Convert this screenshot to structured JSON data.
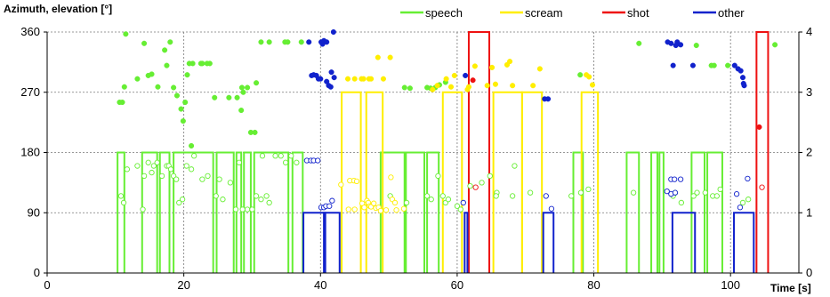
{
  "chart_data": {
    "type": "scatter",
    "ylabel": "Azimuth, elevation [°]",
    "xlabel": "Time [s]",
    "xlim": [
      0,
      110
    ],
    "ylim": [
      0,
      360
    ],
    "y2lim": [
      0,
      4
    ],
    "x_ticks": [
      "0",
      "20",
      "40",
      "60",
      "80",
      "100"
    ],
    "y_ticks": [
      "0",
      "90",
      "180",
      "270",
      "360"
    ],
    "y2_ticks": [
      "0",
      "1",
      "2",
      "3",
      "4"
    ],
    "grid": "dashed",
    "legend_position": "top",
    "colors": {
      "speech": "#66ee33",
      "scream": "#ffee00",
      "shot": "#ee1111",
      "other": "#1122cc"
    },
    "series": [
      {
        "name": "speech",
        "color": "#66ee33",
        "segments": [
          [
            10.3,
            11.3
          ],
          [
            13.9,
            16.1
          ],
          [
            16.5,
            17.9
          ],
          [
            18.5,
            24.3
          ],
          [
            24.8,
            27.3
          ],
          [
            27.7,
            28.4
          ],
          [
            28.8,
            29.8
          ],
          [
            30.3,
            35.3
          ],
          [
            35.9,
            37.4
          ],
          [
            48.8,
            52.3
          ],
          [
            52.5,
            55.2
          ],
          [
            55.6,
            57.3
          ],
          [
            77.0,
            78.4
          ],
          [
            84.8,
            86.6
          ],
          [
            88.4,
            89.3
          ],
          [
            89.6,
            90.2
          ],
          [
            94.3,
            96.2
          ],
          [
            96.6,
            98.8
          ]
        ],
        "azimuth": [
          [
            10.6,
            255
          ],
          [
            11.0,
            255
          ],
          [
            11.3,
            278
          ],
          [
            11.5,
            357
          ],
          [
            13.2,
            290
          ],
          [
            14.2,
            343
          ],
          [
            14.8,
            295
          ],
          [
            15.3,
            297
          ],
          [
            16.2,
            278
          ],
          [
            17.2,
            333
          ],
          [
            17.5,
            310
          ],
          [
            18.0,
            345
          ],
          [
            18.5,
            277
          ],
          [
            19.0,
            265
          ],
          [
            19.6,
            245
          ],
          [
            19.9,
            227
          ],
          [
            20.2,
            255
          ],
          [
            20.5,
            296
          ],
          [
            20.8,
            313
          ],
          [
            21.1,
            190
          ],
          [
            21.3,
            313
          ],
          [
            22.5,
            313
          ],
          [
            22.7,
            313
          ],
          [
            23.4,
            313
          ],
          [
            23.8,
            313
          ],
          [
            24.5,
            262
          ],
          [
            26.6,
            262
          ],
          [
            27.8,
            262
          ],
          [
            28.4,
            243
          ],
          [
            28.5,
            277
          ],
          [
            28.7,
            270
          ],
          [
            29.3,
            277
          ],
          [
            29.8,
            210
          ],
          [
            30.4,
            210
          ],
          [
            30.6,
            284
          ],
          [
            31.3,
            345
          ],
          [
            32.5,
            345
          ],
          [
            34.8,
            345
          ],
          [
            35.2,
            345
          ],
          [
            37.2,
            345
          ],
          [
            52.3,
            277
          ],
          [
            53.1,
            276
          ],
          [
            55.6,
            277
          ],
          [
            56.1,
            276
          ],
          [
            56.8,
            277
          ],
          [
            57.4,
            281
          ],
          [
            58.3,
            285
          ],
          [
            78.0,
            296
          ],
          [
            86.6,
            343
          ],
          [
            95.0,
            340
          ],
          [
            97.2,
            310
          ],
          [
            97.6,
            310
          ],
          [
            99.6,
            310
          ],
          [
            106.5,
            341
          ]
        ],
        "elevation": [
          [
            10.8,
            115
          ],
          [
            11.2,
            105
          ],
          [
            11.7,
            155
          ],
          [
            13.2,
            160
          ],
          [
            14.0,
            95
          ],
          [
            14.2,
            145
          ],
          [
            14.8,
            165
          ],
          [
            15.3,
            150
          ],
          [
            15.6,
            160
          ],
          [
            16.1,
            165
          ],
          [
            16.8,
            145
          ],
          [
            17.5,
            160
          ],
          [
            17.8,
            160
          ],
          [
            18.1,
            155
          ],
          [
            18.5,
            145
          ],
          [
            18.9,
            140
          ],
          [
            19.3,
            105
          ],
          [
            19.8,
            110
          ],
          [
            20.4,
            160
          ],
          [
            21.1,
            155
          ],
          [
            21.5,
            175
          ],
          [
            22.7,
            140
          ],
          [
            23.5,
            145
          ],
          [
            24.7,
            115
          ],
          [
            25.2,
            140
          ],
          [
            25.7,
            110
          ],
          [
            26.8,
            135
          ],
          [
            27.6,
            95
          ],
          [
            28.1,
            165
          ],
          [
            28.6,
            95
          ],
          [
            29.3,
            95
          ],
          [
            30.0,
            95
          ],
          [
            30.6,
            115
          ],
          [
            31.3,
            110
          ],
          [
            31.5,
            175
          ],
          [
            32.1,
            115
          ],
          [
            32.5,
            105
          ],
          [
            33.4,
            175
          ],
          [
            34.2,
            175
          ],
          [
            34.9,
            165
          ],
          [
            35.7,
            175
          ],
          [
            36.5,
            165
          ],
          [
            50.2,
            115
          ],
          [
            52.6,
            105
          ],
          [
            55.6,
            115
          ],
          [
            56.2,
            110
          ],
          [
            57.2,
            145
          ],
          [
            57.9,
            115
          ],
          [
            58.3,
            105
          ],
          [
            58.7,
            110
          ],
          [
            60.0,
            100
          ],
          [
            60.5,
            95
          ],
          [
            61.9,
            130
          ],
          [
            63.6,
            135
          ],
          [
            64.8,
            145
          ],
          [
            65.8,
            120
          ],
          [
            65.7,
            115
          ],
          [
            68.1,
            115
          ],
          [
            68.4,
            160
          ],
          [
            70.7,
            120
          ],
          [
            76.7,
            115
          ],
          [
            78.1,
            120
          ],
          [
            79.2,
            125
          ],
          [
            85.8,
            120
          ],
          [
            91.6,
            115
          ],
          [
            91.9,
            120
          ],
          [
            92.8,
            105
          ],
          [
            94.6,
            115
          ],
          [
            95.1,
            120
          ],
          [
            96.3,
            120
          ],
          [
            97.4,
            115
          ],
          [
            98.0,
            115
          ],
          [
            98.5,
            125
          ],
          [
            101.8,
            105
          ],
          [
            102.6,
            110
          ]
        ]
      },
      {
        "name": "scream",
        "color": "#ffee00",
        "segments": [
          [
            43.1,
            45.9
          ],
          [
            46.7,
            49.1
          ],
          [
            57.9,
            60.7
          ],
          [
            65.3,
            69.5
          ],
          [
            69.5,
            72.4
          ],
          [
            78.2,
            80.6
          ]
        ],
        "azimuth": [
          [
            44.0,
            290
          ],
          [
            45.0,
            290
          ],
          [
            46.0,
            290
          ],
          [
            46.3,
            290
          ],
          [
            47.1,
            290
          ],
          [
            47.4,
            290
          ],
          [
            48.4,
            322
          ],
          [
            49.2,
            290
          ],
          [
            50.2,
            322
          ],
          [
            56.4,
            274
          ],
          [
            57.1,
            280
          ],
          [
            58.4,
            290
          ],
          [
            59.1,
            278
          ],
          [
            59.6,
            295
          ],
          [
            61.5,
            274
          ],
          [
            61.7,
            278
          ],
          [
            62.6,
            309
          ],
          [
            64.4,
            280
          ],
          [
            65.1,
            307
          ],
          [
            65.6,
            282
          ],
          [
            67.3,
            311
          ],
          [
            67.7,
            316
          ],
          [
            68.1,
            280
          ],
          [
            71.1,
            280
          ],
          [
            72.1,
            305
          ],
          [
            78.9,
            296
          ],
          [
            79.3,
            293
          ],
          [
            79.8,
            281
          ]
        ],
        "elevation": [
          [
            43.0,
            132
          ],
          [
            44.1,
            95
          ],
          [
            44.3,
            138
          ],
          [
            44.9,
            138
          ],
          [
            45.0,
            95
          ],
          [
            45.3,
            137
          ],
          [
            46.1,
            104
          ],
          [
            46.4,
            98
          ],
          [
            46.8,
            108
          ],
          [
            47.0,
            105
          ],
          [
            47.2,
            100
          ],
          [
            47.4,
            99
          ],
          [
            47.8,
            104
          ],
          [
            48.1,
            97
          ],
          [
            48.5,
            98
          ],
          [
            48.8,
            93
          ],
          [
            49.6,
            94
          ],
          [
            50.3,
            143
          ],
          [
            50.5,
            110
          ],
          [
            50.9,
            105
          ],
          [
            51.1,
            94
          ],
          [
            52.2,
            96
          ]
        ]
      },
      {
        "name": "shot",
        "color": "#ee1111",
        "segments": [
          [
            61.7,
            64.7
          ],
          [
            103.8,
            105.5
          ]
        ],
        "azimuth": [
          [
            62.3,
            288
          ],
          [
            104.2,
            218
          ]
        ],
        "elevation": [
          [
            62.7,
            128
          ],
          [
            104.6,
            128
          ]
        ]
      },
      {
        "name": "other",
        "color": "#1122cc",
        "segments": [
          [
            37.5,
            42.8
          ],
          [
            40.5,
            40.7
          ],
          [
            61.1,
            61.5
          ],
          [
            72.6,
            74.1
          ],
          [
            91.5,
            94.8
          ],
          [
            100.5,
            103.4
          ]
        ],
        "azimuth": [
          [
            38.3,
            345
          ],
          [
            38.7,
            295
          ],
          [
            39.0,
            296
          ],
          [
            39.4,
            295
          ],
          [
            39.7,
            290
          ],
          [
            40.0,
            290
          ],
          [
            40.1,
            345
          ],
          [
            40.3,
            342
          ],
          [
            40.5,
            347
          ],
          [
            40.9,
            345
          ],
          [
            40.9,
            286
          ],
          [
            41.2,
            280
          ],
          [
            41.5,
            278
          ],
          [
            41.6,
            300
          ],
          [
            42.0,
            292
          ],
          [
            41.9,
            365
          ],
          [
            61.2,
            295
          ],
          [
            72.8,
            260
          ],
          [
            73.3,
            260
          ],
          [
            90.8,
            345
          ],
          [
            91.3,
            343
          ],
          [
            91.6,
            310
          ],
          [
            92.0,
            340
          ],
          [
            92.2,
            345
          ],
          [
            92.7,
            341
          ],
          [
            94.5,
            310
          ],
          [
            100.6,
            310
          ],
          [
            101.1,
            305
          ],
          [
            101.5,
            302
          ],
          [
            101.8,
            292
          ],
          [
            101.9,
            283
          ],
          [
            102.0,
            280
          ]
        ],
        "elevation": [
          [
            38.0,
            168
          ],
          [
            38.6,
            168
          ],
          [
            39.0,
            168
          ],
          [
            39.6,
            168
          ],
          [
            40.1,
            98
          ],
          [
            40.5,
            98
          ],
          [
            40.8,
            100
          ],
          [
            41.3,
            100
          ],
          [
            41.7,
            108
          ],
          [
            60.9,
            105
          ],
          [
            73.0,
            115
          ],
          [
            73.8,
            96
          ],
          [
            90.7,
            122
          ],
          [
            91.3,
            118
          ],
          [
            91.3,
            140
          ],
          [
            91.8,
            140
          ],
          [
            91.9,
            120
          ],
          [
            92.7,
            140
          ],
          [
            100.9,
            118
          ],
          [
            101.4,
            98
          ],
          [
            102.5,
            141
          ]
        ]
      }
    ]
  }
}
